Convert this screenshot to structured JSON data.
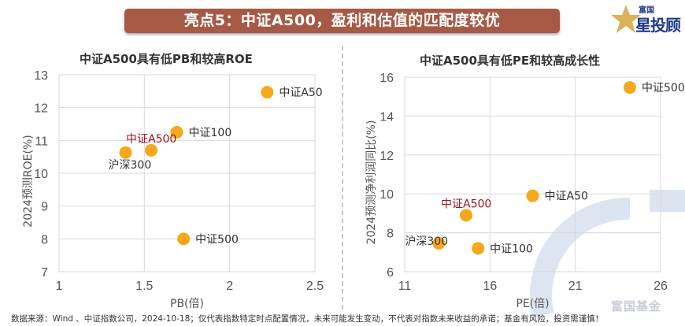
{
  "banner": {
    "title": "亮点5：中证A500，盈利和估值的匹配度较优"
  },
  "logo": {
    "sub": "富国",
    "main": "星投顾"
  },
  "watermark": {
    "text": "富国基金"
  },
  "footer": {
    "text": "数据来源：Wind 、中证指数公司，2024-10-18；仅代表指数特定时点配置情况，未来可能发生变动，不代表对指数未来收益的承诺；基金有风险，投资需谨慎！"
  },
  "colors": {
    "banner": "#a65a45",
    "marker": "#f5a81c",
    "highlight_label": "#a0141e",
    "label": "#333333",
    "grid": "#d9d9d9"
  },
  "chart_data": [
    {
      "type": "scatter",
      "title": "中证A500具有低PB和较高ROE",
      "xlabel": "PB(倍)",
      "ylabel": "2024预测ROE(%)",
      "xlim": [
        1,
        2.5
      ],
      "ylim": [
        7,
        13
      ],
      "xticks": [
        1,
        1.5,
        2,
        2.5
      ],
      "yticks": [
        7,
        8,
        9,
        10,
        11,
        12,
        13
      ],
      "grid": true,
      "points": [
        {
          "name": "中证A50",
          "x": 2.22,
          "y": 12.47,
          "highlight": false,
          "label_pos": "right"
        },
        {
          "name": "中证100",
          "x": 1.69,
          "y": 11.25,
          "highlight": false,
          "label_pos": "right"
        },
        {
          "name": "中证A500",
          "x": 1.54,
          "y": 10.7,
          "highlight": true,
          "label_pos": "top"
        },
        {
          "name": "沪深300",
          "x": 1.39,
          "y": 10.63,
          "highlight": false,
          "label_pos": "bottom"
        },
        {
          "name": "中证500",
          "x": 1.73,
          "y": 8.0,
          "highlight": false,
          "label_pos": "right"
        }
      ]
    },
    {
      "type": "scatter",
      "title": "中证A500具有低PE和较高成长性",
      "xlabel": "PE(倍)",
      "ylabel": "2024预测净利润同比(%)",
      "xlim": [
        11,
        26
      ],
      "ylim": [
        6,
        16
      ],
      "xticks": [
        11,
        16,
        21,
        26
      ],
      "yticks": [
        6,
        8,
        10,
        12,
        14,
        16
      ],
      "grid": true,
      "points": [
        {
          "name": "中证500",
          "x": 24.2,
          "y": 15.47,
          "highlight": false,
          "label_pos": "right"
        },
        {
          "name": "中证A50",
          "x": 18.5,
          "y": 9.9,
          "highlight": false,
          "label_pos": "right"
        },
        {
          "name": "中证A500",
          "x": 14.6,
          "y": 8.9,
          "highlight": true,
          "label_pos": "top"
        },
        {
          "name": "沪深300",
          "x": 13.0,
          "y": 7.46,
          "highlight": false,
          "label_pos": "top-left"
        },
        {
          "name": "中证100",
          "x": 15.3,
          "y": 7.2,
          "highlight": false,
          "label_pos": "right"
        }
      ]
    }
  ]
}
